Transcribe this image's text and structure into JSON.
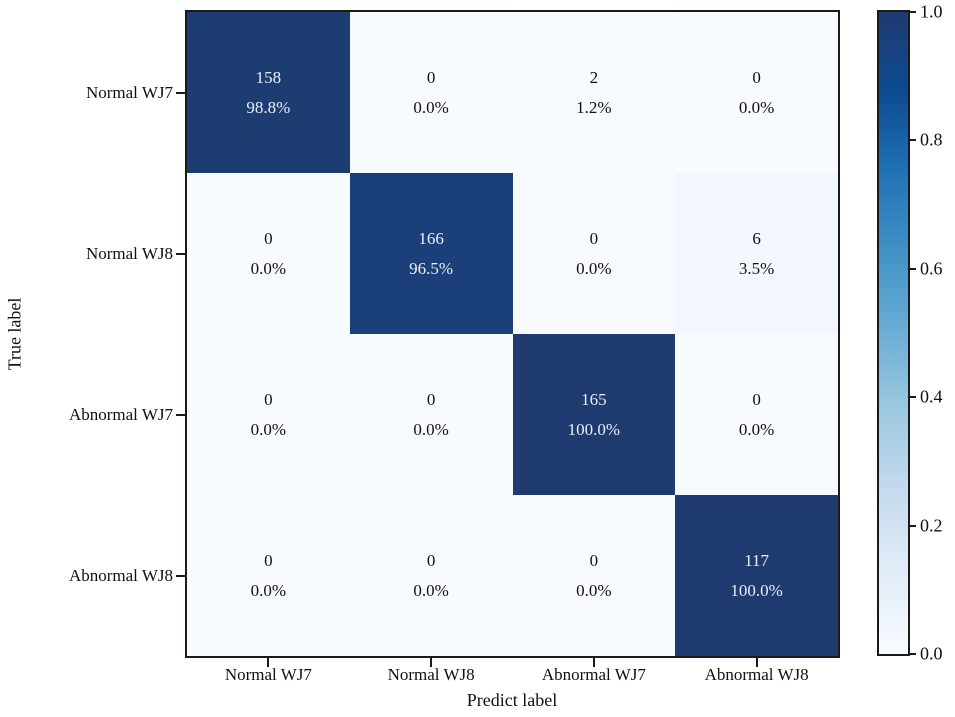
{
  "figure": {
    "background": "#ffffff"
  },
  "chart_data": {
    "type": "heatmap",
    "title": "",
    "xlabel": "Predict label",
    "ylabel": "True label",
    "x_categories": [
      "Normal WJ7",
      "Normal WJ8",
      "Abnormal WJ7",
      "Abnormal WJ8"
    ],
    "y_categories": [
      "Normal WJ7",
      "Normal WJ8",
      "Abnormal WJ7",
      "Abnormal WJ8"
    ],
    "cells": [
      [
        {
          "count": "158",
          "pct": "98.8%",
          "value": 0.988
        },
        {
          "count": "0",
          "pct": "0.0%",
          "value": 0.0
        },
        {
          "count": "2",
          "pct": "1.2%",
          "value": 0.012
        },
        {
          "count": "0",
          "pct": "0.0%",
          "value": 0.0
        }
      ],
      [
        {
          "count": "0",
          "pct": "0.0%",
          "value": 0.0
        },
        {
          "count": "166",
          "pct": "96.5%",
          "value": 0.965
        },
        {
          "count": "0",
          "pct": "0.0%",
          "value": 0.0
        },
        {
          "count": "6",
          "pct": "3.5%",
          "value": 0.035
        }
      ],
      [
        {
          "count": "0",
          "pct": "0.0%",
          "value": 0.0
        },
        {
          "count": "0",
          "pct": "0.0%",
          "value": 0.0
        },
        {
          "count": "165",
          "pct": "100.0%",
          "value": 1.0
        },
        {
          "count": "0",
          "pct": "0.0%",
          "value": 0.0
        }
      ],
      [
        {
          "count": "0",
          "pct": "0.0%",
          "value": 0.0
        },
        {
          "count": "0",
          "pct": "0.0%",
          "value": 0.0
        },
        {
          "count": "0",
          "pct": "0.0%",
          "value": 0.0
        },
        {
          "count": "117",
          "pct": "100.0%",
          "value": 1.0
        }
      ]
    ],
    "colorbar": {
      "min": 0.0,
      "max": 1.0,
      "tick_labels": [
        "1.0",
        "0.8",
        "0.6",
        "0.4",
        "0.2",
        "0.0"
      ]
    },
    "colormap": {
      "name": "Blues",
      "stops": [
        [
          0.0,
          "#f7fbff"
        ],
        [
          0.125,
          "#e2edf8"
        ],
        [
          0.25,
          "#c6dbef"
        ],
        [
          0.375,
          "#9ecae1"
        ],
        [
          0.5,
          "#6baed6"
        ],
        [
          0.625,
          "#4292c6"
        ],
        [
          0.75,
          "#2171b5"
        ],
        [
          0.875,
          "#0d4b91"
        ],
        [
          1.0,
          "#1f3a6f"
        ]
      ]
    },
    "text_colors": {
      "dark_cells": "#e9eef7",
      "light_cells": "#111111"
    },
    "axis_color": "#1a1a1a"
  }
}
